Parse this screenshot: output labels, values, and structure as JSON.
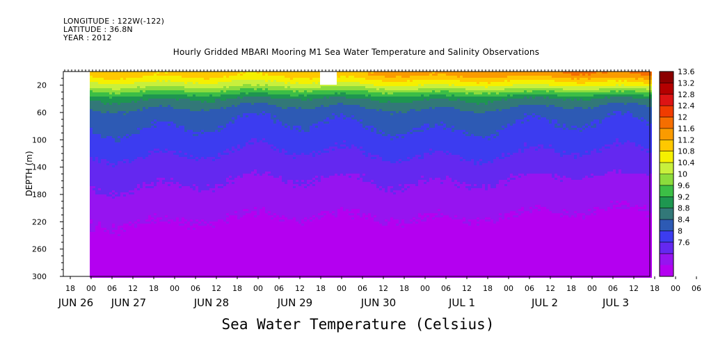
{
  "meta": {
    "longitude": "LONGITUDE : 122W(-122)",
    "latitude": "LATITUDE : 36.8N",
    "year": "YEAR : 2012"
  },
  "chart_data": {
    "type": "heatmap",
    "title": "Hourly Gridded MBARI Mooring M1 Sea Water Temperature and Salinity Observations",
    "xlabel": "Sea Water Temperature (Celsius)",
    "ylabel": "DEPTH (m)",
    "x_hour_ticks": [
      "18",
      "00",
      "06",
      "12",
      "18",
      "00",
      "06",
      "12",
      "18",
      "00",
      "06",
      "12",
      "18",
      "00",
      "06",
      "12",
      "18",
      "00",
      "06",
      "12",
      "18",
      "00",
      "06",
      "12",
      "18",
      "00",
      "06",
      "12",
      "18",
      "00",
      "06",
      "12"
    ],
    "x_day_labels": [
      "JUN 26",
      "JUN 27",
      "JUN 28",
      "JUN 29",
      "JUN 30",
      "JUL  1",
      "JUL  2",
      "JUL  3"
    ],
    "y_ticks": [
      20,
      60,
      100,
      140,
      180,
      220,
      260,
      300
    ],
    "ylim": [
      300,
      0
    ],
    "colorbar": {
      "ticks": [
        "13.6",
        "13.2",
        "12.8",
        "12.4",
        "12",
        "11.6",
        "11.2",
        "10.8",
        "10.4",
        "10",
        "9.6",
        "9.2",
        "8.8",
        "8.4",
        "8",
        "7.6"
      ],
      "colors": [
        "#8b0000",
        "#b40000",
        "#dc1414",
        "#f03c00",
        "#f56e00",
        "#fa9b00",
        "#ffc800",
        "#f5f000",
        "#c8f03c",
        "#8cdc3c",
        "#3cbe46",
        "#1e9650",
        "#327878",
        "#2d5ab4",
        "#3c3cf0",
        "#6428f0",
        "#9614f0",
        "#b400f0"
      ]
    },
    "depth_profile": [
      {
        "depth": 5,
        "temp": 12.0
      },
      {
        "depth": 20,
        "temp": 11.3
      },
      {
        "depth": 40,
        "temp": 10.0
      },
      {
        "depth": 60,
        "temp": 9.4
      },
      {
        "depth": 100,
        "temp": 9.0
      },
      {
        "depth": 140,
        "temp": 8.6
      },
      {
        "depth": 180,
        "temp": 8.3
      },
      {
        "depth": 220,
        "temp": 8.0
      },
      {
        "depth": 260,
        "temp": 7.8
      },
      {
        "depth": 300,
        "temp": 7.6
      }
    ],
    "time_range": [
      "JUN 26 18:00",
      "JUL  3 18:00"
    ],
    "data_start": "JUN 27 00:00",
    "grid": false,
    "legend": "right"
  }
}
